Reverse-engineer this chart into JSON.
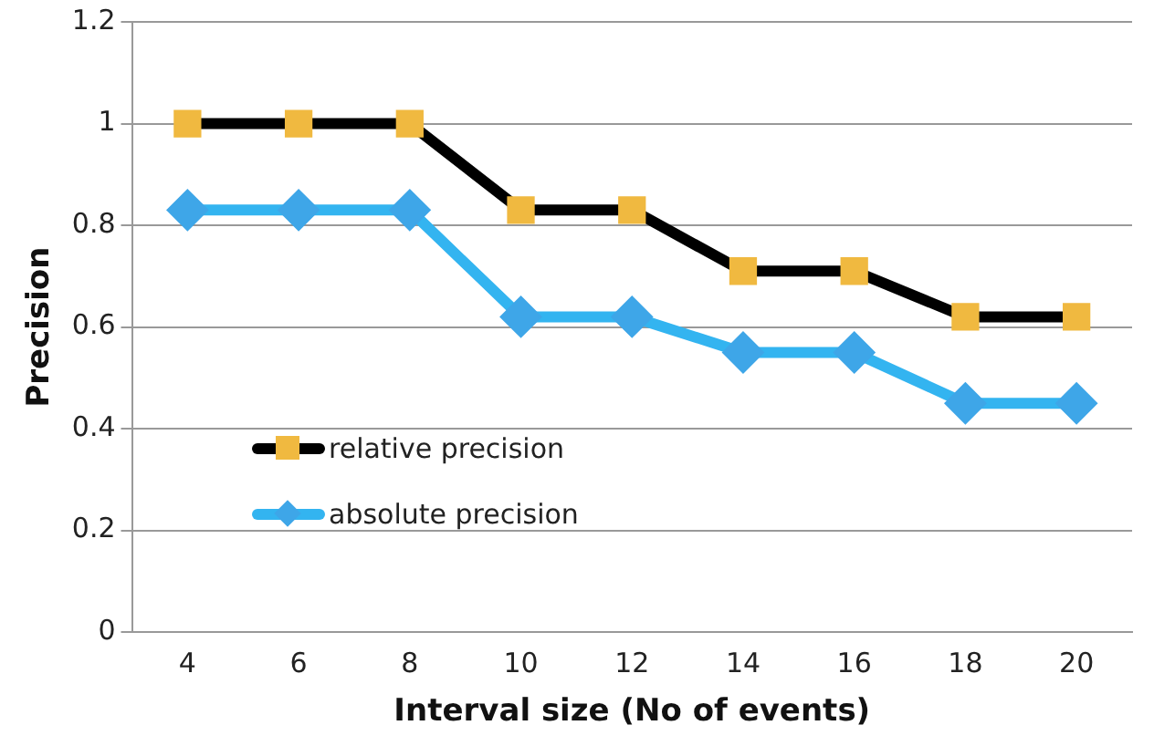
{
  "chart_data": {
    "type": "line",
    "xlabel": "Interval size (No of events)",
    "ylabel": "Precision",
    "categories": [
      "4",
      "6",
      "8",
      "10",
      "12",
      "14",
      "16",
      "18",
      "20"
    ],
    "series": [
      {
        "name": "relative precision",
        "color": "#000000",
        "colors": [
          "#f0b940",
          "#f0b940",
          "#f0b940",
          "#f0b940",
          "#f0b940",
          "#f0b940",
          "#f0b940",
          "#f0b940",
          "#f0b940"
        ],
        "marker": "square",
        "values": [
          1,
          1,
          1,
          0.83,
          0.83,
          0.71,
          0.71,
          0.62,
          0.62
        ]
      },
      {
        "name": "absolute precision",
        "color": "#33b4f0",
        "colors": [
          "#3ea6e8",
          "#3ea6e8",
          "#3ea6e8",
          "#3ea6e8",
          "#3ea6e8",
          "#3ea6e8",
          "#3ea6e8",
          "#3ea6e8",
          "#3ea6e8"
        ],
        "marker": "diamond",
        "values": [
          0.83,
          0.83,
          0.83,
          0.62,
          0.62,
          0.55,
          0.55,
          0.45,
          0.45
        ]
      }
    ],
    "ylim": [
      0,
      1.2
    ],
    "yticks": [
      0,
      0.2,
      0.4,
      0.6,
      0.8,
      1,
      1.2
    ],
    "grid": "y",
    "legend": "bottom left"
  }
}
